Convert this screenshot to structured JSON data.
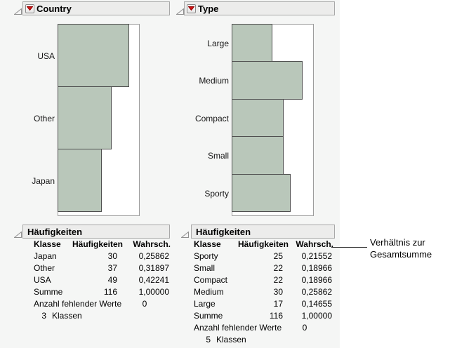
{
  "colors": {
    "bar_fill": "#b9c7ba",
    "bar_border": "#4f4f4f",
    "header_bg": "#ececeb",
    "red_triangle": "#d11313",
    "report_bg": "#f5f6f5"
  },
  "sections": {
    "country": {
      "title": "Country"
    },
    "type": {
      "title": "Type"
    },
    "freq_left": {
      "title": "Häufigkeiten"
    },
    "freq_right": {
      "title": "Häufigkeiten"
    }
  },
  "chart_data": [
    {
      "id": "country",
      "type": "bar",
      "orientation": "horizontal",
      "title": "Country",
      "categories": [
        "USA",
        "Other",
        "Japan"
      ],
      "values": [
        0.42241,
        0.31897,
        0.25862
      ],
      "counts": [
        49,
        37,
        30
      ],
      "xlim": [
        0,
        0.48
      ],
      "grid": false,
      "legend": "none"
    },
    {
      "id": "type",
      "type": "bar",
      "orientation": "horizontal",
      "title": "Type",
      "categories": [
        "Large",
        "Medium",
        "Compact",
        "Small",
        "Sporty"
      ],
      "values": [
        0.14655,
        0.25862,
        0.18966,
        0.18966,
        0.21552
      ],
      "counts": [
        17,
        30,
        22,
        22,
        25
      ],
      "xlim": [
        0,
        0.297
      ],
      "grid": false,
      "legend": "none"
    }
  ],
  "tables": [
    {
      "id": "freq_country",
      "title": "Häufigkeiten",
      "columns": [
        "Klasse",
        "Häufigkeiten",
        "Wahrsch."
      ],
      "rows": [
        [
          "Japan",
          "30",
          "0,25862"
        ],
        [
          "Other",
          "37",
          "0,31897"
        ],
        [
          "USA",
          "49",
          "0,42241"
        ],
        [
          "Summe",
          "116",
          "1,00000"
        ]
      ],
      "missing_label": "Anzahl fehlender Werte",
      "missing_value": "0",
      "n_classes": "3",
      "classes_label": "Klassen"
    },
    {
      "id": "freq_type",
      "title": "Häufigkeiten",
      "columns": [
        "Klasse",
        "Häufigkeiten",
        "Wahrsch."
      ],
      "rows": [
        [
          "Sporty",
          "25",
          "0,21552"
        ],
        [
          "Small",
          "22",
          "0,18966"
        ],
        [
          "Compact",
          "22",
          "0,18966"
        ],
        [
          "Medium",
          "30",
          "0,25862"
        ],
        [
          "Large",
          "17",
          "0,14655"
        ],
        [
          "Summe",
          "116",
          "1,00000"
        ]
      ],
      "missing_label": "Anzahl fehlender Werte",
      "missing_value": "0",
      "n_classes": "5",
      "classes_label": "Klassen"
    }
  ],
  "annotation": {
    "line1": "Verhältnis zur",
    "line2": "Gesamtsumme"
  }
}
